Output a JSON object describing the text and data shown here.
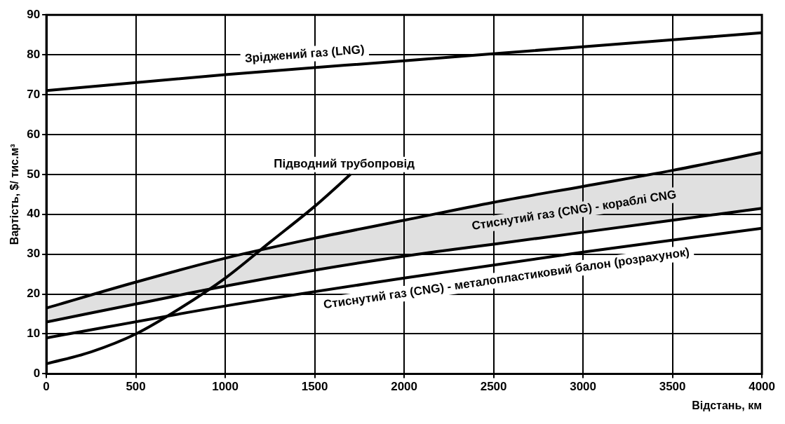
{
  "chart_data": {
    "type": "line",
    "xlabel": "Відстань, км",
    "ylabel": "Вартість, $/ тис.м³",
    "xlim": [
      0,
      4000
    ],
    "xticks": [
      0,
      500,
      1000,
      1500,
      2000,
      2500,
      3000,
      3500,
      4000
    ],
    "ylim": [
      0,
      90
    ],
    "yticks": [
      0,
      10,
      20,
      30,
      40,
      50,
      60,
      70,
      80,
      90
    ],
    "grid": true,
    "legend": false,
    "marker": "none",
    "line_style": "solid",
    "series": [
      {
        "name": "Зріджений газ (LNG)",
        "color": "#000000",
        "x": [
          0,
          1000,
          2000,
          3000,
          4000
        ],
        "values": [
          71,
          75,
          78.5,
          82,
          85.5
        ]
      },
      {
        "name": "Підводний трубопровід",
        "color": "#000000",
        "x": [
          0,
          250,
          500,
          750,
          1000,
          1250,
          1500,
          1700
        ],
        "values": [
          2.5,
          5.5,
          10,
          16.5,
          24,
          33,
          42,
          50
        ]
      },
      {
        "name": "Стиснутий газ (CNG) - кораблі CNG",
        "color": "#000000",
        "x": [
          0,
          500,
          1000,
          1500,
          2000,
          2500,
          3000,
          3500,
          4000
        ],
        "values": [
          16.5,
          23,
          29,
          34,
          38.5,
          43,
          47,
          51,
          55.5
        ],
        "lower": [
          13,
          17.5,
          22,
          26,
          29.5,
          32.5,
          35.5,
          38.5,
          41.5
        ],
        "upper": [
          16.5,
          23,
          29,
          34,
          38.5,
          43,
          47,
          51,
          55.5
        ]
      },
      {
        "color": "#000000",
        "x": [
          0,
          500,
          1000,
          1500,
          2000,
          2500,
          3000,
          3500,
          4000
        ],
        "values": [
          13,
          17.5,
          22,
          26,
          29.5,
          32.5,
          35.5,
          38.5,
          41.5
        ]
      },
      {
        "name": "Стиснутий газ (CNG) - металопластиковий балон (розрахунок)",
        "color": "#000000",
        "x": [
          0,
          1000,
          2000,
          3000,
          4000
        ],
        "values": [
          9,
          17,
          24,
          30.5,
          36.5
        ]
      }
    ]
  }
}
